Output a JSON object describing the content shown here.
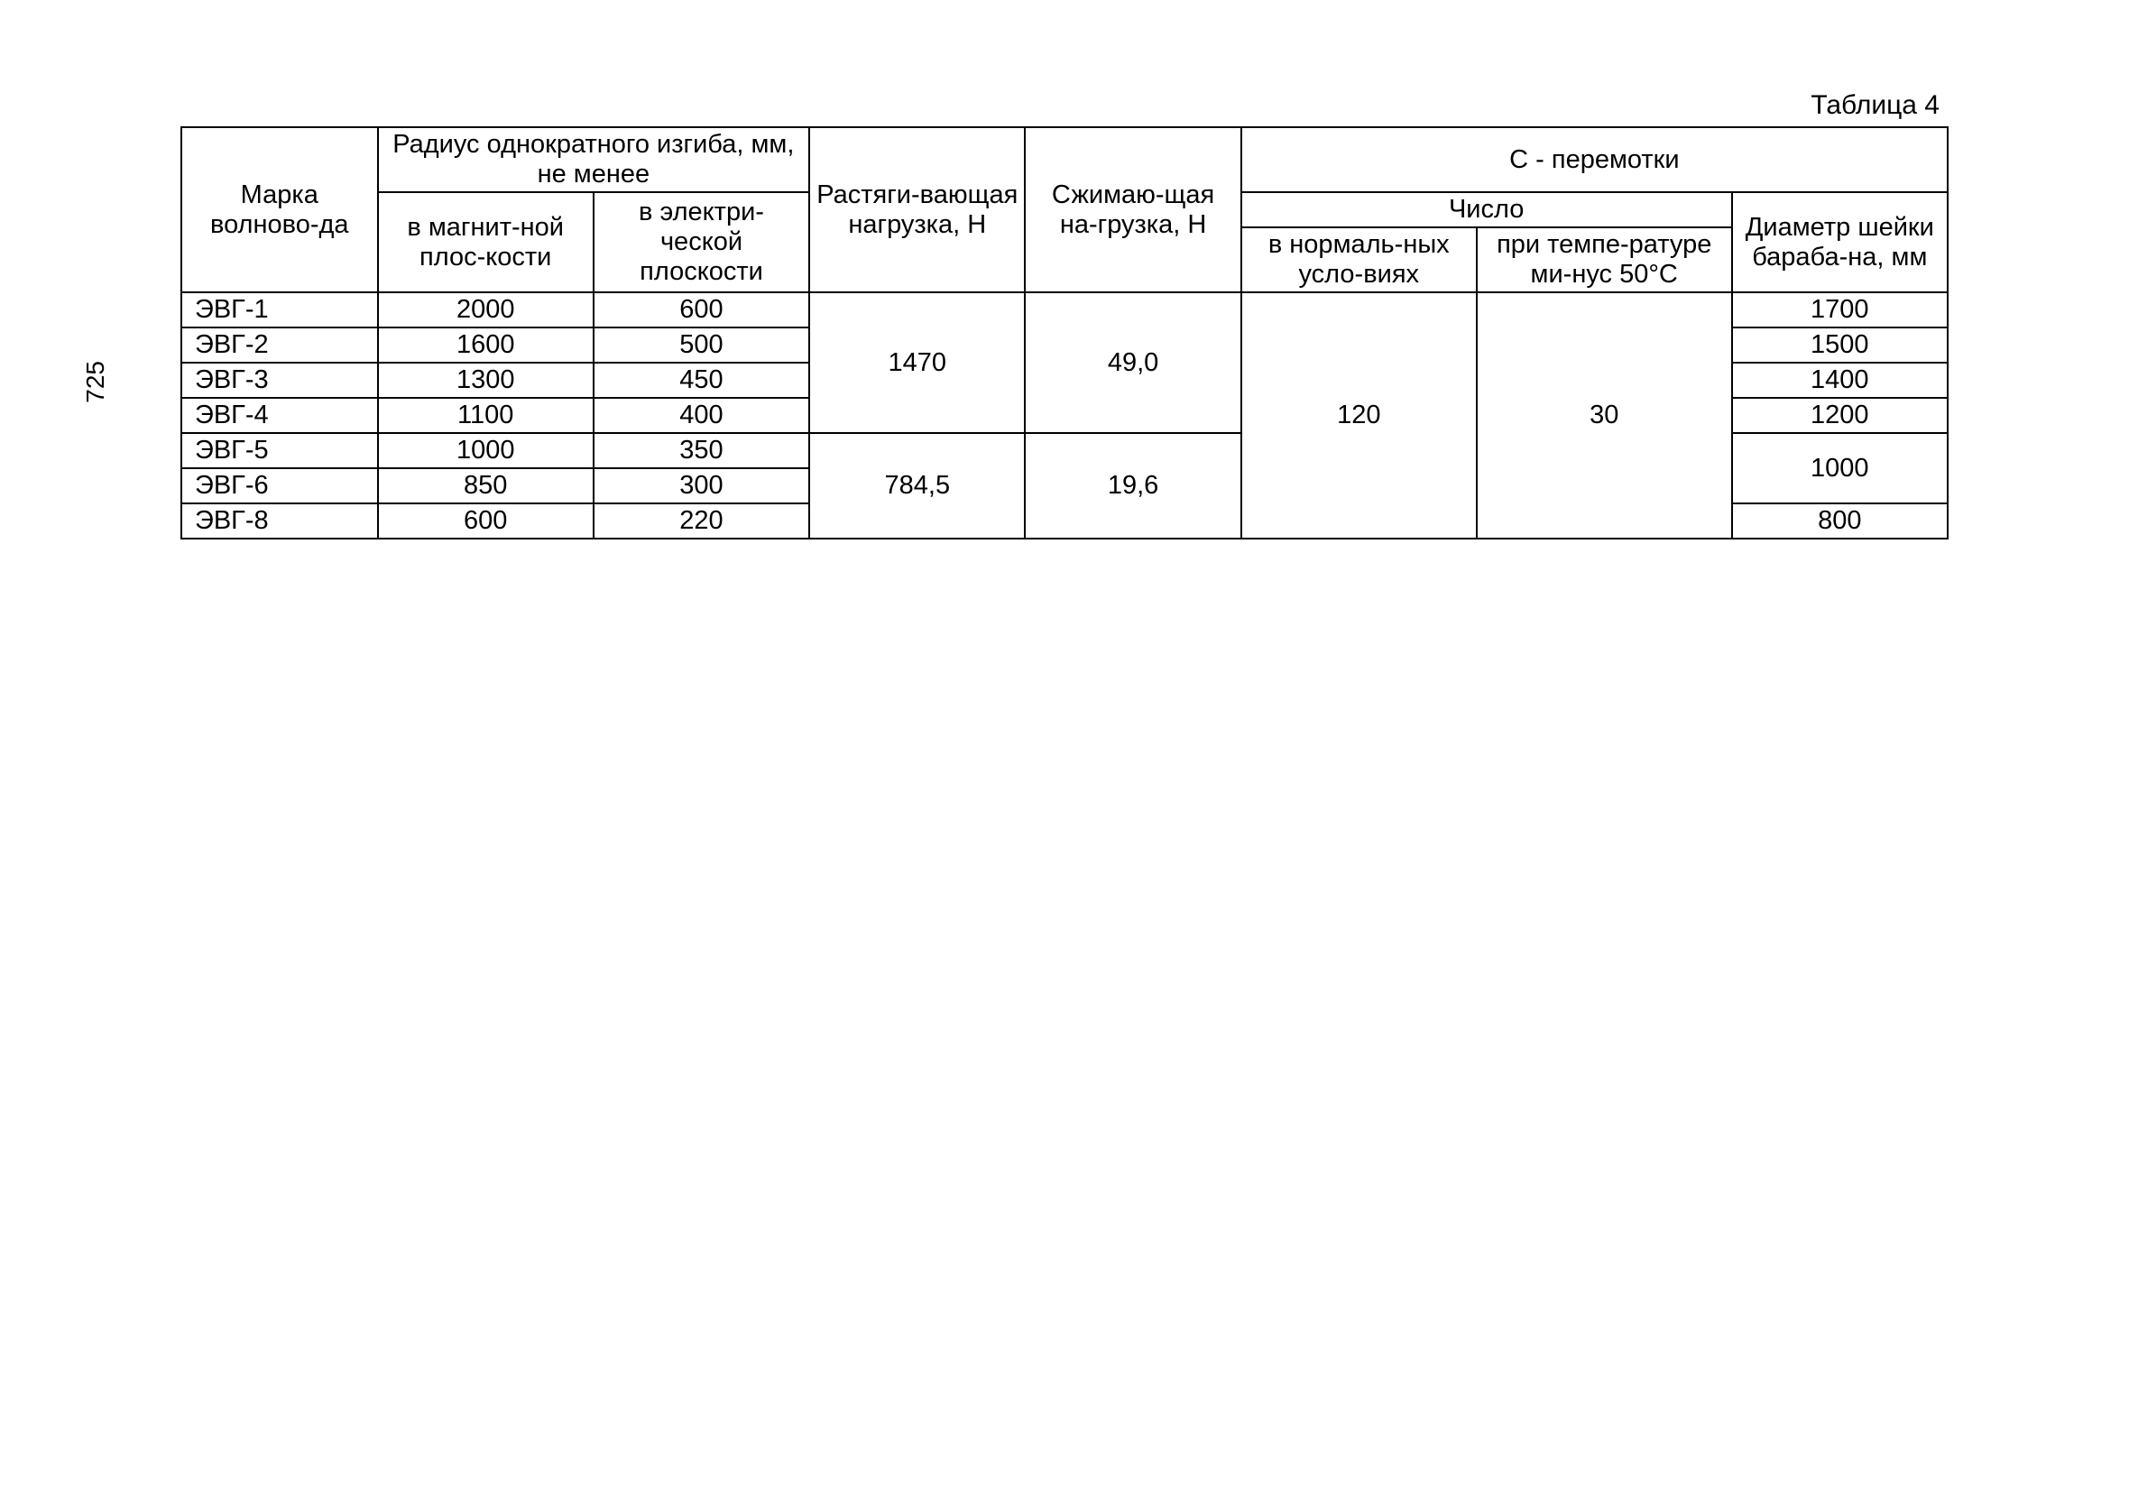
{
  "caption": "Таблица 4",
  "page_number": "725",
  "headers": {
    "marka": "Марка волново-да",
    "radius_group": "Радиус однократного изгиба, мм, не менее",
    "radius_mag": "в магнит-ной плос-кости",
    "radius_elec": "в электри-ческой плоскости",
    "tensile": "Растяги-вающая нагрузка, Н",
    "compress": "Сжимаю-щая на-грузка, Н",
    "rewind_group": "С - перемотки",
    "rewind_count": "Число",
    "rewind_normal": "в нормаль-ных усло-виях",
    "rewind_temp": "при темпе-ратуре ми-нус 50°С",
    "diam": "Диаметр шейки бараба-на, мм"
  },
  "rows": {
    "r1": {
      "marka": "ЭВГ-1",
      "mag": "2000",
      "elec": "600",
      "diam": "1700"
    },
    "r2": {
      "marka": "ЭВГ-2",
      "mag": "1600",
      "elec": "500",
      "diam": "1500"
    },
    "r3": {
      "marka": "ЭВГ-3",
      "mag": "1300",
      "elec": "450",
      "diam": "1400"
    },
    "r4": {
      "marka": "ЭВГ-4",
      "mag": "1100",
      "elec": "400",
      "diam": "1200"
    },
    "r5": {
      "marka": "ЭВГ-5",
      "mag": "1000",
      "elec": "350"
    },
    "r6": {
      "marka": "ЭВГ-6",
      "mag": "850",
      "elec": "300"
    },
    "r7": {
      "marka": "ЭВГ-8",
      "mag": "600",
      "elec": "220",
      "diam": "800"
    }
  },
  "spans": {
    "tensile_1_4": "1470",
    "compress_1_4": "49,0",
    "tensile_5_7": "784,5",
    "compress_5_7": "19,6",
    "normal_all": "120",
    "temp_all": "30",
    "diam_5_6": "1000"
  },
  "style": {
    "border_color": "#000000",
    "text_color": "#000000",
    "background": "#ffffff",
    "font_size_pt": 29,
    "caption_font_size_pt": 30
  }
}
